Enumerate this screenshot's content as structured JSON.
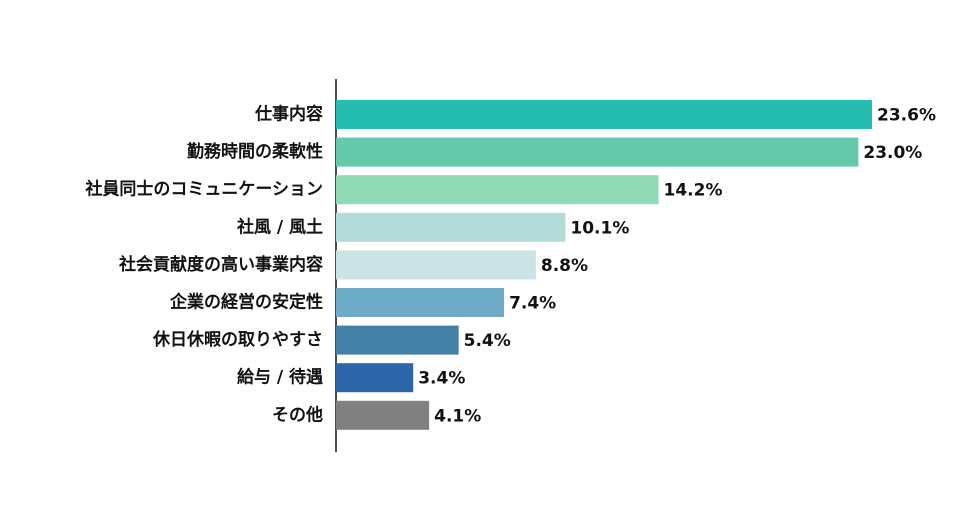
{
  "chart_data": {
    "type": "bar",
    "orientation": "horizontal",
    "categories": [
      "仕事内容",
      "勤務時間の柔軟性",
      "社員同士のコミュニケーション",
      "社風 / 風土",
      "社会貢献度の高い事業内容",
      "企業の経営の安定性",
      "休日休暇の取りやすさ",
      "給与 / 待遇",
      "その他"
    ],
    "values": [
      23.6,
      23.0,
      14.2,
      10.1,
      8.8,
      7.4,
      5.4,
      3.4,
      4.1
    ],
    "value_labels": [
      "23.6%",
      "23.0%",
      "14.2%",
      "10.1%",
      "8.8%",
      "7.4%",
      "5.4%",
      "3.4%",
      "4.1%"
    ],
    "colors": [
      "#25bdb0",
      "#66c8aa",
      "#8fd9b7",
      "#b3dcd9",
      "#cce3e6",
      "#6eabc6",
      "#4580a6",
      "#2c66a8",
      "#808080"
    ]
  }
}
